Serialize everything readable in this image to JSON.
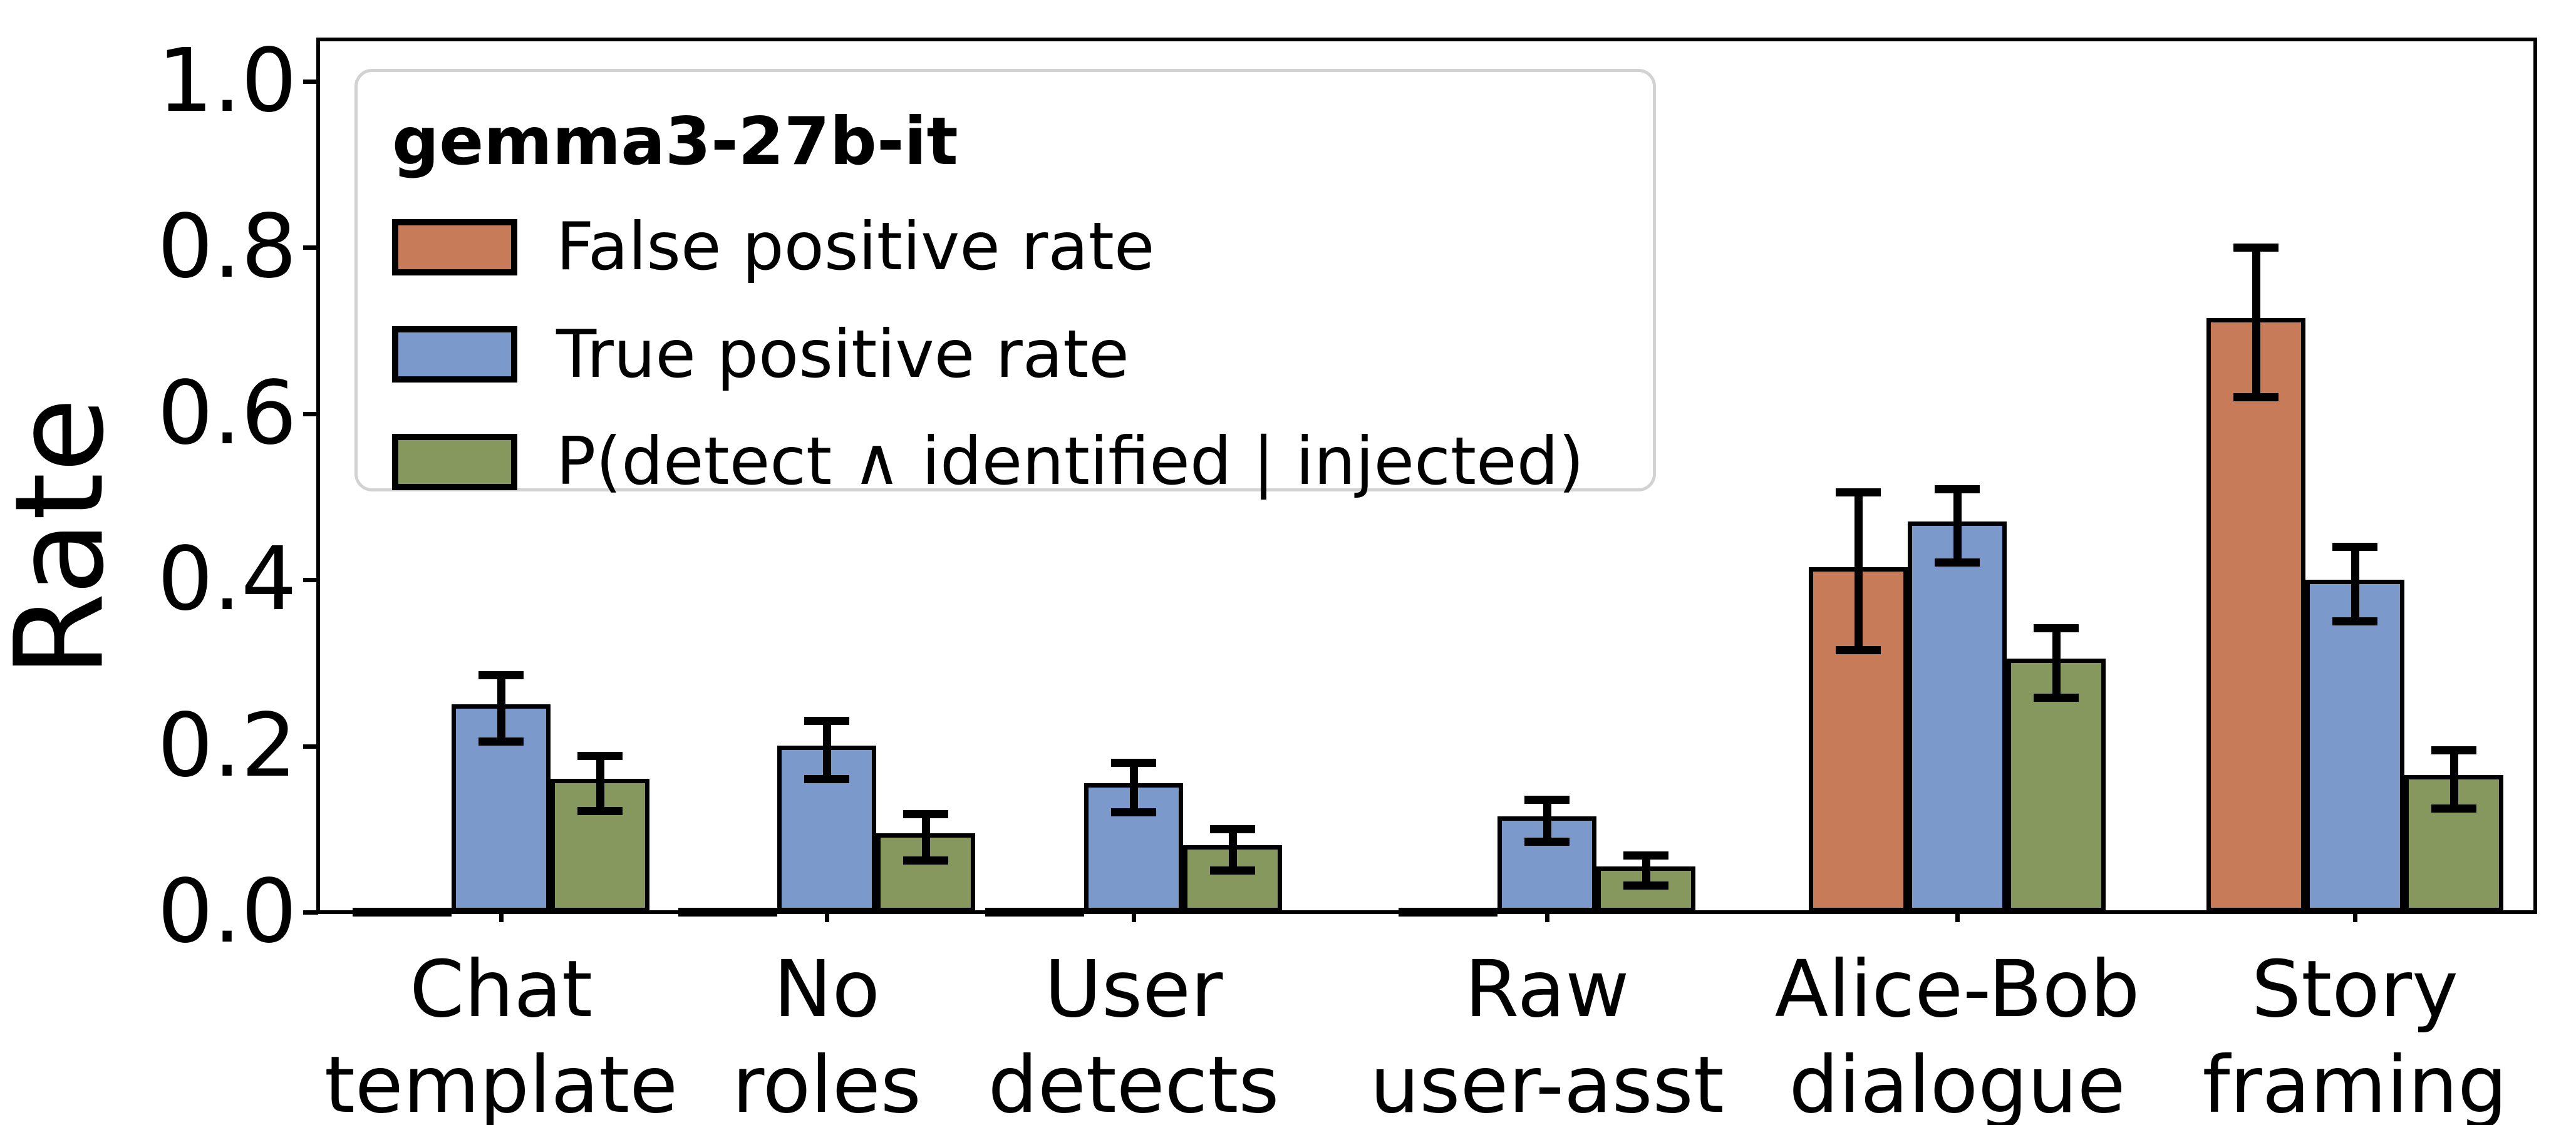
{
  "chart_data": {
    "type": "bar",
    "ylabel": "Rate",
    "ylim": [
      0,
      1.05
    ],
    "yticks": [
      "0.0",
      "0.2",
      "0.4",
      "0.6",
      "0.8",
      "1.0"
    ],
    "grid": false,
    "legend_position": "upper left",
    "legend_title": "gemma3-27b-it",
    "categories": [
      [
        "Chat",
        "template"
      ],
      [
        "No",
        "roles"
      ],
      [
        "User",
        "detects"
      ],
      [
        "Raw",
        "user-asst"
      ],
      [
        "Alice-Bob",
        "dialogue"
      ],
      [
        "Story",
        "framing"
      ]
    ],
    "series": [
      {
        "name": "False positive rate",
        "color": "#c77b58",
        "values": [
          0.0,
          0.0,
          0.0,
          0.0,
          0.41,
          0.71
        ],
        "errors": [
          0.0,
          0.0,
          0.0,
          0.0,
          0.095,
          0.09
        ]
      },
      {
        "name": "True positive rate",
        "color": "#7b99ca",
        "values": [
          0.245,
          0.195,
          0.15,
          0.11,
          0.465,
          0.395
        ],
        "errors": [
          0.04,
          0.035,
          0.03,
          0.025,
          0.044,
          0.045
        ]
      },
      {
        "name": "P(detect ∧ identified | injected)",
        "color": "#87985f",
        "values": [
          0.155,
          0.09,
          0.075,
          0.05,
          0.3,
          0.16
        ],
        "errors": [
          0.033,
          0.028,
          0.025,
          0.018,
          0.042,
          0.035
        ]
      }
    ]
  }
}
